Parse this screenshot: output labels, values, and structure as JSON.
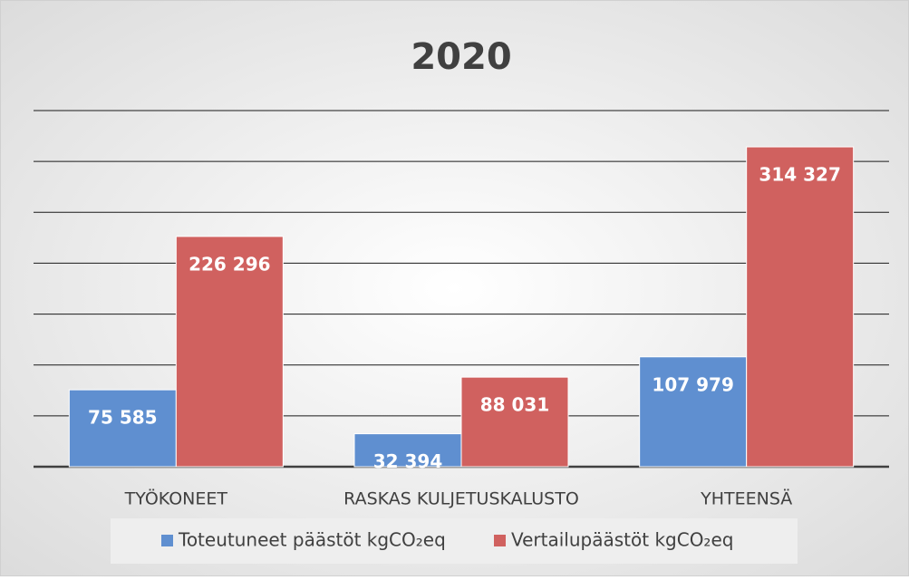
{
  "chart_data": {
    "type": "bar",
    "title": "2020",
    "categories": [
      "TYÖKONEET",
      "RASKAS KULJETUSKALUSTO",
      "YHTEENSÄ"
    ],
    "series": [
      {
        "name": "Toteutuneet päästöt kgCO₂eq",
        "color": "#5f8fd0",
        "values": [
          75585,
          32394,
          107979
        ],
        "value_labels": [
          "75 585",
          "32 394",
          "107 979"
        ]
      },
      {
        "name": "Vertailupäästöt kgCO₂eq",
        "color": "#d0615f",
        "values": [
          226296,
          88031,
          314327
        ],
        "value_labels": [
          "226 296",
          "88 031",
          "314 327"
        ]
      }
    ],
    "ylim": [
      0,
      350000
    ],
    "yticks": [
      0,
      50000,
      100000,
      150000,
      200000,
      250000,
      300000,
      350000
    ],
    "grid": true,
    "legend": "bottom"
  }
}
